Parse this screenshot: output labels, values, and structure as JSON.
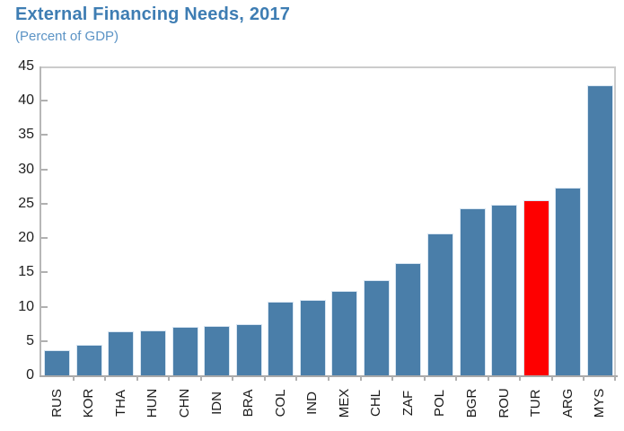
{
  "header": {
    "title": "External Financing Needs, 2017",
    "subtitle": "(Percent of GDP)"
  },
  "colors": {
    "bar": "#4a7ea9",
    "highlight": "#fe0000",
    "title_text": "#3e7db3",
    "subtitle_text": "#5b93c5",
    "axis_line": "#b7b7b7",
    "label_text": "#1f1f1f"
  },
  "chart_data": {
    "type": "bar",
    "title": "External Financing Needs, 2017",
    "subtitle": "(Percent of GDP)",
    "xlabel": "",
    "ylabel": "Percent of GDP",
    "categories": [
      "RUS",
      "KOR",
      "THA",
      "HUN",
      "CHN",
      "IDN",
      "BRA",
      "COL",
      "IND",
      "MEX",
      "CHL",
      "ZAF",
      "POL",
      "BGR",
      "ROU",
      "TUR",
      "ARG",
      "MYS"
    ],
    "values": [
      3.7,
      4.4,
      6.4,
      6.5,
      7.1,
      7.2,
      7.5,
      10.7,
      11.0,
      12.3,
      13.9,
      16.4,
      20.7,
      24.3,
      24.8,
      25.5,
      27.3,
      42.3
    ],
    "highlight_category": "TUR",
    "ylim": [
      0,
      45
    ],
    "ytick_step": 5,
    "yticks": [
      0,
      5,
      10,
      15,
      20,
      25,
      30,
      35,
      40,
      45
    ],
    "grid": false,
    "legend": false
  }
}
